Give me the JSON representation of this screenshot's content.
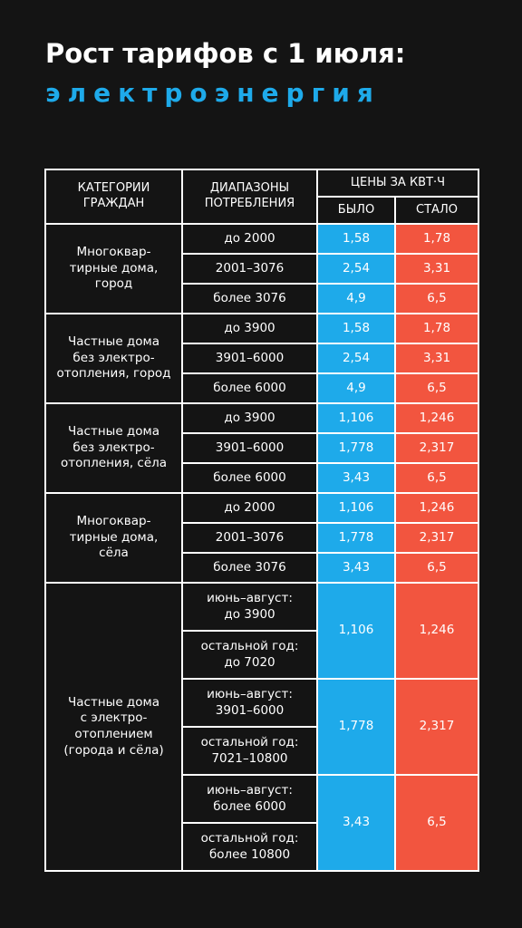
{
  "header": {
    "title": "Рост тарифов с 1 июля:",
    "subtitle": "электроэнергия"
  },
  "table": {
    "head": {
      "category": "КАТЕГОРИИ\nГРАЖДАН",
      "range": "ДИАПАЗОНЫ\nПОТРЕБЛЕНИЯ",
      "prices": "ЦЕНЫ ЗА КВТ·Ч",
      "old": "БЫЛО",
      "new": "СТАЛО"
    },
    "groups": [
      {
        "category": "Многоквар-\nтирные дома,\nгород",
        "rows": [
          {
            "range": "до 2000",
            "old": "1,58",
            "new": "1,78"
          },
          {
            "range": "2001–3076",
            "old": "2,54",
            "new": "3,31"
          },
          {
            "range": "более 3076",
            "old": "4,9",
            "new": "6,5"
          }
        ]
      },
      {
        "category": "Частные дома\nбез электро-\nотопления, город",
        "rows": [
          {
            "range": "до 3900",
            "old": "1,58",
            "new": "1,78"
          },
          {
            "range": "3901–6000",
            "old": "2,54",
            "new": "3,31"
          },
          {
            "range": "более 6000",
            "old": "4,9",
            "new": "6,5"
          }
        ]
      },
      {
        "category": "Частные дома\nбез электро-\nотопления, сёла",
        "rows": [
          {
            "range": "до 3900",
            "old": "1,106",
            "new": "1,246"
          },
          {
            "range": "3901–6000",
            "old": "1,778",
            "new": "2,317"
          },
          {
            "range": "более 6000",
            "old": "3,43",
            "new": "6,5"
          }
        ]
      },
      {
        "category": "Многоквар-\nтирные дома,\nсёла",
        "rows": [
          {
            "range": "до 2000",
            "old": "1,106",
            "new": "1,246"
          },
          {
            "range": "2001–3076",
            "old": "1,778",
            "new": "2,317"
          },
          {
            "range": "более 3076",
            "old": "3,43",
            "new": "6,5"
          }
        ]
      },
      {
        "category": "Частные дома\nс электро-\nотоплением\n(города и сёла)",
        "rows": [
          {
            "ranges": [
              "июнь–август:\nдо 3900",
              "остальной год:\nдо 7020"
            ],
            "old": "1,106",
            "new": "1,246"
          },
          {
            "ranges": [
              "июнь–август:\n3901–6000",
              "остальной год:\n7021–10800"
            ],
            "old": "1,778",
            "new": "2,317"
          },
          {
            "ranges": [
              "июнь–август:\nболее 6000",
              "остальной год:\nболее 10800"
            ],
            "old": "3,43",
            "new": "6,5"
          }
        ]
      }
    ]
  }
}
